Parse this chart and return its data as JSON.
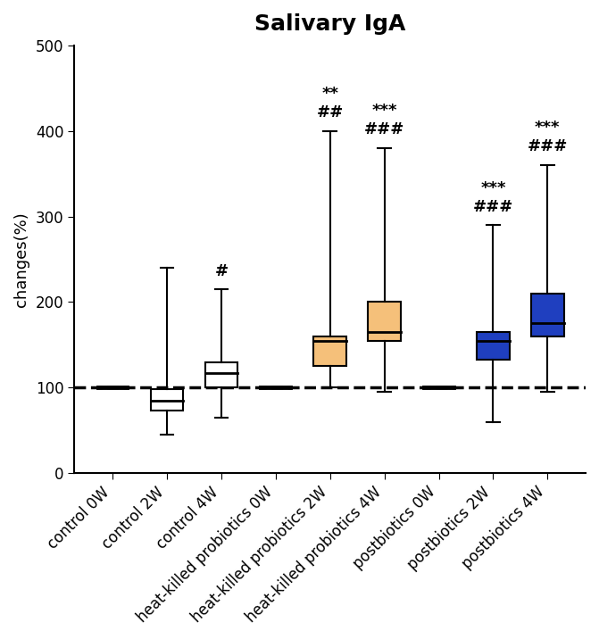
{
  "title": "Salivary IgA",
  "ylabel": "changes(%)",
  "ylim": [
    0,
    500
  ],
  "yticks": [
    0,
    100,
    200,
    300,
    400,
    500
  ],
  "dashed_line_y": 100,
  "categories": [
    "control 0W",
    "control 2W",
    "control 4W",
    "heat-killed probiotics 0W",
    "heat-killed probiotics 2W",
    "heat-killed probiotics 4W",
    "postbiotics 0W",
    "postbiotics 2W",
    "postbiotics 4W"
  ],
  "box_data": [
    {
      "whislo": 100,
      "q1": 100,
      "med": 100,
      "q3": 100,
      "whishi": 100,
      "dash_only": true
    },
    {
      "whislo": 45,
      "q1": 73,
      "med": 85,
      "q3": 98,
      "whishi": 240,
      "dash_only": false
    },
    {
      "whislo": 65,
      "q1": 100,
      "med": 117,
      "q3": 130,
      "whishi": 215,
      "dash_only": false
    },
    {
      "whislo": 100,
      "q1": 100,
      "med": 100,
      "q3": 100,
      "whishi": 100,
      "dash_only": true
    },
    {
      "whislo": 100,
      "q1": 125,
      "med": 155,
      "q3": 160,
      "whishi": 400,
      "dash_only": false
    },
    {
      "whislo": 95,
      "q1": 155,
      "med": 165,
      "q3": 200,
      "whishi": 380,
      "dash_only": false
    },
    {
      "whislo": 100,
      "q1": 100,
      "med": 100,
      "q3": 100,
      "whishi": 100,
      "dash_only": true
    },
    {
      "whislo": 60,
      "q1": 133,
      "med": 155,
      "q3": 165,
      "whishi": 290,
      "dash_only": false
    },
    {
      "whislo": 95,
      "q1": 160,
      "med": 175,
      "q3": 210,
      "whishi": 360,
      "dash_only": false
    }
  ],
  "box_colors": [
    "white",
    "white",
    "white",
    "white",
    "#F5C07A",
    "#F5C07A",
    "white",
    "#1F3FBF",
    "#1F3FBF"
  ],
  "annotations": [
    "",
    "",
    "#",
    "",
    "##\n**",
    "###\n***",
    "",
    "###\n***",
    "###\n***"
  ],
  "title_fontsize": 18,
  "label_fontsize": 13,
  "tick_fontsize": 12,
  "annot_fontsize": 13
}
